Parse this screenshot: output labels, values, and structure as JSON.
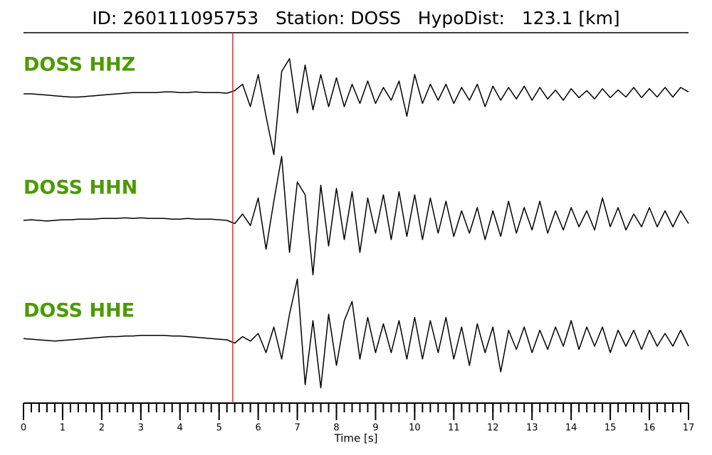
{
  "chart_data": {
    "type": "seismogram",
    "title": "ID: 260111095753   Station: DOSS   HypoDist:   123.1 [km]",
    "xlabel": "Time [s]",
    "xlim": [
      0,
      17
    ],
    "xticks": [
      0,
      1,
      2,
      3,
      4,
      5,
      6,
      7,
      8,
      9,
      10,
      11,
      12,
      13,
      14,
      15,
      16,
      17
    ],
    "minor_tick_step": 0.2,
    "pick_time": 5.35,
    "pick_color": "#e8242b",
    "label_color": "#4c9a00",
    "x": [
      0,
      0.2,
      0.4,
      0.6,
      0.8,
      1,
      1.2,
      1.4,
      1.6,
      1.8,
      2,
      2.2,
      2.4,
      2.6,
      2.8,
      3,
      3.2,
      3.4,
      3.6,
      3.8,
      4,
      4.2,
      4.4,
      4.6,
      4.8,
      5,
      5.2,
      5.4,
      5.6,
      5.8,
      6,
      6.2,
      6.4,
      6.6,
      6.8,
      7,
      7.2,
      7.4,
      7.6,
      7.8,
      8,
      8.2,
      8.4,
      8.6,
      8.8,
      9,
      9.2,
      9.4,
      9.6,
      9.8,
      10,
      10.2,
      10.4,
      10.6,
      10.8,
      11,
      11.2,
      11.4,
      11.6,
      11.8,
      12,
      12.2,
      12.4,
      12.6,
      12.8,
      13,
      13.2,
      13.4,
      13.6,
      13.8,
      14,
      14.2,
      14.4,
      14.6,
      14.8,
      15,
      15.2,
      15.4,
      15.6,
      15.8,
      16,
      16.2,
      16.4,
      16.6,
      16.8,
      17
    ],
    "series": [
      {
        "name": "DOSS HHZ",
        "color": "#000000",
        "values": [
          0,
          0,
          -0.01,
          -0.02,
          -0.03,
          -0.04,
          -0.05,
          -0.05,
          -0.04,
          -0.03,
          -0.02,
          -0.01,
          0,
          0.01,
          0.02,
          0.02,
          0.02,
          0.02,
          0.03,
          0.03,
          0.02,
          0.02,
          0.03,
          0.02,
          0.02,
          0.02,
          0.01,
          0.05,
          0.15,
          -0.2,
          0.3,
          -0.35,
          -0.95,
          0.35,
          0.55,
          -0.3,
          0.45,
          -0.25,
          0.3,
          -0.2,
          0.25,
          -0.2,
          0.15,
          -0.15,
          0.2,
          -0.15,
          0.1,
          -0.1,
          0.2,
          -0.35,
          0.3,
          -0.15,
          0.15,
          -0.1,
          0.15,
          -0.15,
          0.1,
          -0.1,
          0.15,
          -0.2,
          0.12,
          -0.1,
          0.1,
          -0.08,
          0.12,
          -0.1,
          0.1,
          -0.08,
          0.06,
          -0.1,
          0.08,
          -0.06,
          0.05,
          -0.08,
          0.08,
          -0.06,
          0.06,
          -0.05,
          0.1,
          -0.06,
          0.08,
          -0.05,
          0.1,
          -0.05,
          0.1,
          0.03
        ]
      },
      {
        "name": "DOSS HHN",
        "color": "#000000",
        "values": [
          0,
          0.01,
          0,
          -0.01,
          0,
          0.01,
          0.01,
          0.02,
          0.02,
          0.02,
          0.03,
          0.03,
          0.03,
          0.04,
          0.03,
          0.04,
          0.03,
          0.03,
          0.03,
          0.02,
          0.02,
          0.03,
          0.02,
          0.02,
          0.02,
          0.01,
          0,
          -0.05,
          0.1,
          -0.08,
          0.35,
          -0.45,
          0.3,
          1.0,
          -0.5,
          0.6,
          0.4,
          -0.85,
          0.55,
          -0.4,
          0.5,
          -0.3,
          0.45,
          -0.5,
          0.35,
          -0.2,
          0.4,
          -0.3,
          0.45,
          -0.25,
          0.4,
          -0.3,
          0.35,
          -0.2,
          0.3,
          -0.25,
          0.15,
          -0.2,
          0.2,
          -0.3,
          0.15,
          -0.25,
          0.3,
          -0.2,
          0.2,
          -0.15,
          0.3,
          -0.2,
          0.15,
          -0.15,
          0.2,
          -0.1,
          0.15,
          -0.15,
          0.35,
          -0.1,
          0.2,
          -0.15,
          0.1,
          -0.1,
          0.2,
          -0.1,
          0.15,
          -0.1,
          0.15,
          -0.05
        ]
      },
      {
        "name": "DOSS HHE",
        "color": "#000000",
        "values": [
          0.02,
          0.01,
          0,
          -0.01,
          -0.02,
          -0.01,
          0,
          0.01,
          0.02,
          0.03,
          0.04,
          0.05,
          0.05,
          0.06,
          0.06,
          0.07,
          0.07,
          0.07,
          0.07,
          0.06,
          0.06,
          0.05,
          0.04,
          0.03,
          0.02,
          0.01,
          0,
          -0.05,
          0.05,
          -0.02,
          0.1,
          -0.2,
          0.2,
          -0.3,
          0.4,
          0.95,
          -0.7,
          0.3,
          -0.75,
          0.4,
          -0.4,
          0.3,
          0.6,
          -0.3,
          0.35,
          -0.2,
          0.25,
          -0.2,
          0.3,
          -0.3,
          0.35,
          -0.3,
          0.3,
          -0.2,
          0.35,
          -0.3,
          0.2,
          -0.4,
          0.25,
          -0.2,
          0.2,
          -0.5,
          0.15,
          -0.15,
          0.2,
          -0.2,
          0.15,
          -0.15,
          0.2,
          -0.1,
          0.3,
          -0.15,
          0.2,
          -0.1,
          0.2,
          -0.2,
          0.15,
          -0.1,
          0.15,
          -0.15,
          0.15,
          -0.1,
          0.1,
          -0.1,
          0.15,
          -0.1
        ]
      }
    ]
  }
}
